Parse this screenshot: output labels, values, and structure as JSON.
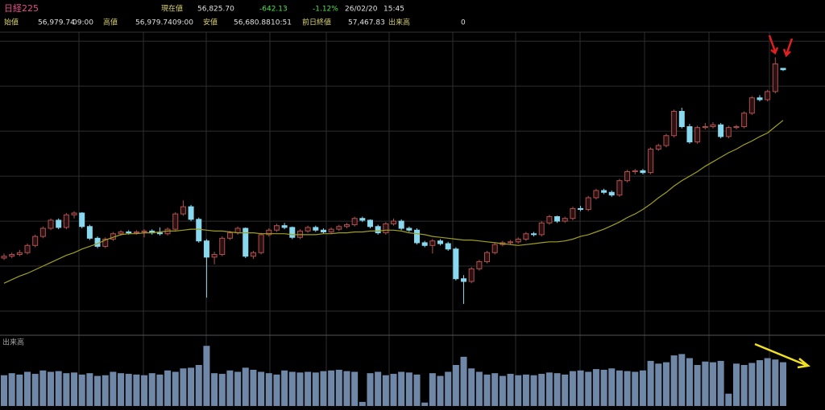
{
  "header": {
    "symbol": "日経225",
    "row1": [
      {
        "label": "現在値",
        "value": "56,825.70"
      },
      {
        "value": "-642.13"
      },
      {
        "value": "-1.12%"
      },
      {
        "value": "26/02/20"
      },
      {
        "value": "15:45"
      }
    ],
    "row2": [
      {
        "label": "始値",
        "value": "56,979.74",
        "time": "09:00"
      },
      {
        "label": "高値",
        "value": "56,979.74",
        "time": "09:00"
      },
      {
        "label": "安値",
        "value": "56,680.88",
        "time": "10:51"
      },
      {
        "label": "前日終値",
        "value": "57,467.83"
      },
      {
        "label": "出来高",
        "value": "0"
      }
    ]
  },
  "chart_data": {
    "type": "candlestick",
    "up_color": "#b05050",
    "down_color": "#88d8f0",
    "ma_color": "#a0a020",
    "volume_color": "#7088a8",
    "ylim": [
      27500,
      61000
    ],
    "yticks": [
      30000,
      35000,
      40000,
      45000,
      50000,
      55000,
      60000
    ],
    "grid": true,
    "candles": [
      [
        35900,
        36400,
        35700,
        36100
      ],
      [
        36100,
        36500,
        35900,
        36300
      ],
      [
        36300,
        36800,
        36100,
        36500
      ],
      [
        36500,
        37500,
        36300,
        37300
      ],
      [
        37300,
        38500,
        37100,
        38300
      ],
      [
        38300,
        39400,
        38100,
        39200
      ],
      [
        39200,
        40300,
        39000,
        40100
      ],
      [
        40100,
        40300,
        39100,
        39300
      ],
      [
        39300,
        40900,
        39100,
        40700
      ],
      [
        40700,
        41100,
        40300,
        40900
      ],
      [
        40900,
        41000,
        39200,
        39400
      ],
      [
        39400,
        39600,
        37900,
        38100
      ],
      [
        38100,
        38300,
        37000,
        37200
      ],
      [
        37200,
        38200,
        37000,
        38000
      ],
      [
        38000,
        38800,
        37800,
        38600
      ],
      [
        38600,
        39000,
        38400,
        38800
      ],
      [
        38800,
        39000,
        38500,
        38700
      ],
      [
        38700,
        39000,
        38500,
        38800
      ],
      [
        38800,
        39100,
        38200,
        38900
      ],
      [
        38900,
        39100,
        38500,
        38700
      ],
      [
        38700,
        39300,
        38400,
        38600
      ],
      [
        38600,
        39300,
        38400,
        39100
      ],
      [
        39100,
        41000,
        38900,
        40800
      ],
      [
        40800,
        42300,
        40600,
        41600
      ],
      [
        41600,
        41800,
        40000,
        40200
      ],
      [
        40200,
        40400,
        37600,
        37800
      ],
      [
        37800,
        38000,
        31500,
        36000
      ],
      [
        36000,
        36600,
        35200,
        36300
      ],
      [
        36300,
        38300,
        36100,
        38100
      ],
      [
        38100,
        38900,
        37900,
        38700
      ],
      [
        38700,
        39400,
        38500,
        39200
      ],
      [
        39200,
        39300,
        35900,
        36100
      ],
      [
        36100,
        36700,
        35800,
        36500
      ],
      [
        36500,
        38700,
        36300,
        38500
      ],
      [
        38500,
        39200,
        38300,
        39000
      ],
      [
        39000,
        39700,
        38800,
        39500
      ],
      [
        39500,
        39800,
        39100,
        39300
      ],
      [
        39300,
        39400,
        38000,
        38200
      ],
      [
        38200,
        39100,
        38000,
        38900
      ],
      [
        38900,
        39500,
        38700,
        39300
      ],
      [
        39300,
        39500,
        38800,
        39000
      ],
      [
        39000,
        39200,
        38600,
        38800
      ],
      [
        38800,
        39300,
        38600,
        39100
      ],
      [
        39100,
        39600,
        38900,
        39400
      ],
      [
        39400,
        39800,
        39200,
        39600
      ],
      [
        39600,
        40500,
        39400,
        40300
      ],
      [
        40300,
        40500,
        39900,
        40100
      ],
      [
        40100,
        40200,
        39200,
        39400
      ],
      [
        39400,
        39600,
        38500,
        38700
      ],
      [
        38700,
        39900,
        38500,
        39700
      ],
      [
        39700,
        40300,
        39500,
        40000
      ],
      [
        40000,
        40200,
        39000,
        39200
      ],
      [
        39200,
        39400,
        38800,
        39000
      ],
      [
        39000,
        39200,
        37400,
        37600
      ],
      [
        37600,
        37800,
        37100,
        37300
      ],
      [
        37300,
        38000,
        36400,
        37800
      ],
      [
        37800,
        38000,
        37300,
        37500
      ],
      [
        37500,
        37700,
        36700,
        36900
      ],
      [
        36900,
        37100,
        33400,
        33600
      ],
      [
        33600,
        34000,
        30800,
        33300
      ],
      [
        33300,
        34900,
        33100,
        34700
      ],
      [
        34700,
        35700,
        34500,
        35500
      ],
      [
        35500,
        36700,
        35300,
        36500
      ],
      [
        36500,
        37600,
        36300,
        37400
      ],
      [
        37400,
        37800,
        37200,
        37600
      ],
      [
        37600,
        37900,
        37400,
        37700
      ],
      [
        37700,
        38200,
        37500,
        38000
      ],
      [
        38000,
        38800,
        37800,
        38600
      ],
      [
        38600,
        38800,
        38300,
        38500
      ],
      [
        38500,
        40000,
        38300,
        39800
      ],
      [
        39800,
        40700,
        39600,
        40500
      ],
      [
        40500,
        40600,
        39800,
        40000
      ],
      [
        40000,
        40500,
        39800,
        40300
      ],
      [
        40300,
        41600,
        40100,
        41400
      ],
      [
        41400,
        41700,
        41100,
        41300
      ],
      [
        41300,
        42800,
        41100,
        42600
      ],
      [
        42600,
        43600,
        42400,
        43400
      ],
      [
        43400,
        43600,
        43000,
        43200
      ],
      [
        43200,
        43400,
        42700,
        42900
      ],
      [
        42900,
        44700,
        42700,
        44500
      ],
      [
        44500,
        45700,
        44300,
        45500
      ],
      [
        45500,
        45800,
        45200,
        45600
      ],
      [
        45600,
        45800,
        45200,
        45400
      ],
      [
        45400,
        48200,
        45200,
        48000
      ],
      [
        48000,
        48600,
        47800,
        48400
      ],
      [
        48400,
        49700,
        48200,
        49500
      ],
      [
        49500,
        52400,
        49300,
        52200
      ],
      [
        52200,
        52600,
        50300,
        50500
      ],
      [
        50500,
        50800,
        48600,
        48800
      ],
      [
        48800,
        50600,
        48600,
        50400
      ],
      [
        50400,
        50900,
        50200,
        50500
      ],
      [
        50500,
        51000,
        50300,
        50700
      ],
      [
        50700,
        50900,
        49200,
        49400
      ],
      [
        49400,
        50600,
        49200,
        50400
      ],
      [
        50400,
        50700,
        50200,
        50500
      ],
      [
        50500,
        52200,
        50300,
        52000
      ],
      [
        52000,
        53900,
        51800,
        53700
      ],
      [
        53700,
        54000,
        53300,
        53500
      ],
      [
        53500,
        54600,
        53300,
        54400
      ],
      [
        54400,
        58200,
        54200,
        57467.83
      ],
      [
        56979.74,
        56979.74,
        56680.88,
        56825.7
      ]
    ],
    "ma": [
      33100,
      33500,
      33900,
      34200,
      34600,
      35000,
      35400,
      35800,
      36200,
      36500,
      36900,
      37200,
      37500,
      37900,
      38200,
      38500,
      38600,
      38600,
      38700,
      38700,
      38800,
      38900,
      38900,
      39000,
      39100,
      39100,
      39000,
      38900,
      38900,
      38800,
      38700,
      38700,
      38700,
      38600,
      38600,
      38600,
      38600,
      38500,
      38500,
      38500,
      38500,
      38600,
      38600,
      38700,
      38700,
      38800,
      38800,
      38900,
      38900,
      39000,
      39000,
      38900,
      38700,
      38600,
      38500,
      38300,
      38200,
      38100,
      38000,
      37900,
      37900,
      37800,
      37700,
      37600,
      37500,
      37400,
      37300,
      37400,
      37500,
      37600,
      37700,
      37700,
      37800,
      38000,
      38300,
      38500,
      38800,
      39100,
      39500,
      39900,
      40400,
      40800,
      41300,
      41900,
      42600,
      43200,
      43900,
      44500,
      45000,
      45500,
      46100,
      46600,
      47100,
      47600,
      48000,
      48500,
      48900,
      49400,
      49800,
      50500,
      51200
    ],
    "volume_label": "出来高",
    "vlim": [
      0,
      100
    ],
    "volume": [
      45,
      48,
      46,
      50,
      47,
      52,
      50,
      51,
      48,
      49,
      46,
      48,
      44,
      45,
      50,
      48,
      47,
      46,
      45,
      48,
      46,
      52,
      50,
      55,
      56,
      60,
      88,
      48,
      47,
      52,
      50,
      56,
      53,
      50,
      48,
      46,
      52,
      50,
      49,
      50,
      49,
      51,
      52,
      53,
      51,
      50,
      6,
      48,
      50,
      45,
      47,
      50,
      49,
      46,
      5,
      48,
      44,
      50,
      60,
      72,
      55,
      50,
      46,
      48,
      44,
      47,
      45,
      46,
      45,
      47,
      49,
      48,
      46,
      51,
      52,
      50,
      54,
      53,
      55,
      52,
      51,
      50,
      52,
      66,
      62,
      64,
      74,
      76,
      70,
      60,
      65,
      64,
      66,
      18,
      62,
      60,
      63,
      67,
      70,
      68,
      64
    ]
  }
}
